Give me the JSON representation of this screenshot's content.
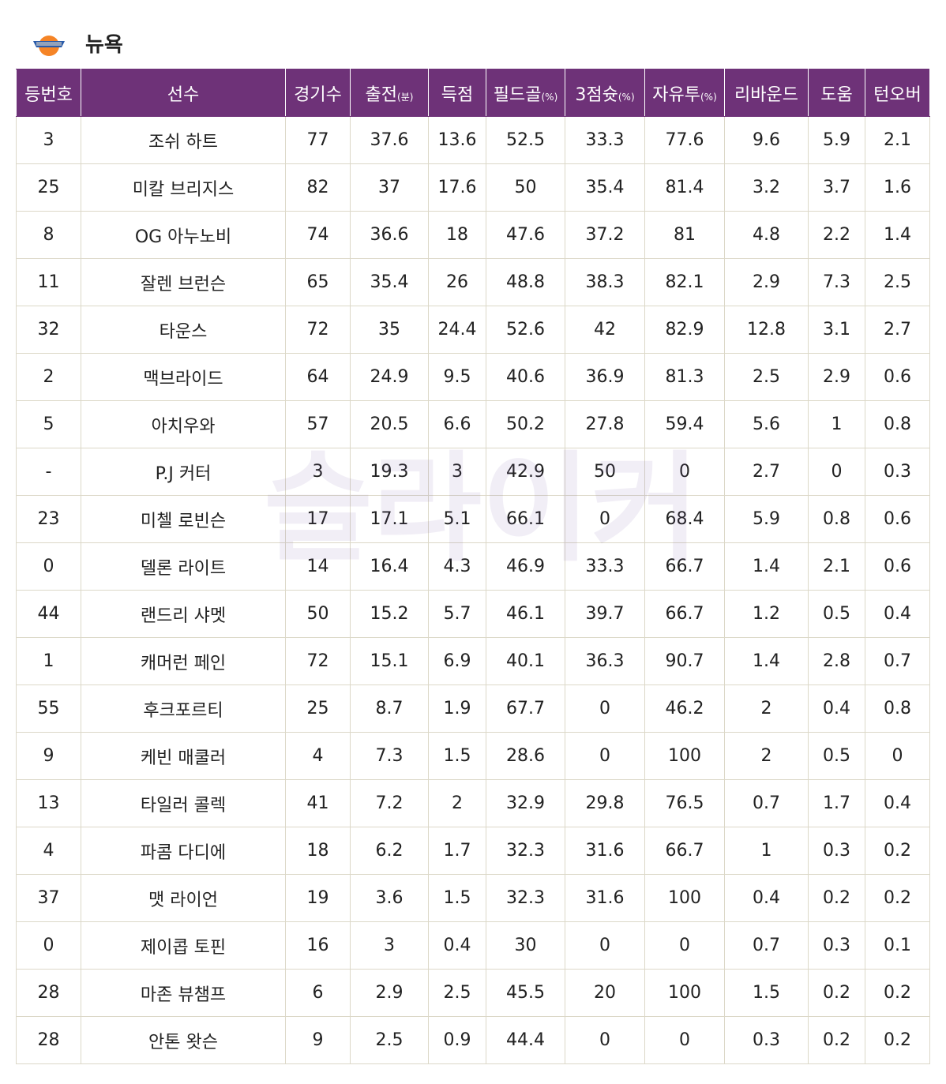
{
  "header": {
    "title": "뉴욕"
  },
  "watermark": "슬라이커",
  "table": {
    "columns": [
      {
        "label": "등번호"
      },
      {
        "label": "선수"
      },
      {
        "label": "경기수"
      },
      {
        "label": "출전",
        "unit": "(분)"
      },
      {
        "label": "득점"
      },
      {
        "label": "필드골",
        "unit": "(%)"
      },
      {
        "label": "3점슛",
        "unit": "(%)"
      },
      {
        "label": "자유투",
        "unit": "(%)"
      },
      {
        "label": "리바운드"
      },
      {
        "label": "도움"
      },
      {
        "label": "턴오버"
      }
    ],
    "rows": [
      [
        "3",
        "조쉬 하트",
        "77",
        "37.6",
        "13.6",
        "52.5",
        "33.3",
        "77.6",
        "9.6",
        "5.9",
        "2.1"
      ],
      [
        "25",
        "미칼 브리지스",
        "82",
        "37",
        "17.6",
        "50",
        "35.4",
        "81.4",
        "3.2",
        "3.7",
        "1.6"
      ],
      [
        "8",
        "OG 아누노비",
        "74",
        "36.6",
        "18",
        "47.6",
        "37.2",
        "81",
        "4.8",
        "2.2",
        "1.4"
      ],
      [
        "11",
        "잘렌 브런슨",
        "65",
        "35.4",
        "26",
        "48.8",
        "38.3",
        "82.1",
        "2.9",
        "7.3",
        "2.5"
      ],
      [
        "32",
        "타운스",
        "72",
        "35",
        "24.4",
        "52.6",
        "42",
        "82.9",
        "12.8",
        "3.1",
        "2.7"
      ],
      [
        "2",
        "맥브라이드",
        "64",
        "24.9",
        "9.5",
        "40.6",
        "36.9",
        "81.3",
        "2.5",
        "2.9",
        "0.6"
      ],
      [
        "5",
        "아치우와",
        "57",
        "20.5",
        "6.6",
        "50.2",
        "27.8",
        "59.4",
        "5.6",
        "1",
        "0.8"
      ],
      [
        "-",
        "P.J 커터",
        "3",
        "19.3",
        "3",
        "42.9",
        "50",
        "0",
        "2.7",
        "0",
        "0.3"
      ],
      [
        "23",
        "미첼 로빈슨",
        "17",
        "17.1",
        "5.1",
        "66.1",
        "0",
        "68.4",
        "5.9",
        "0.8",
        "0.6"
      ],
      [
        "0",
        "델론 라이트",
        "14",
        "16.4",
        "4.3",
        "46.9",
        "33.3",
        "66.7",
        "1.4",
        "2.1",
        "0.6"
      ],
      [
        "44",
        "랜드리 샤멧",
        "50",
        "15.2",
        "5.7",
        "46.1",
        "39.7",
        "66.7",
        "1.2",
        "0.5",
        "0.4"
      ],
      [
        "1",
        "캐머런 페인",
        "72",
        "15.1",
        "6.9",
        "40.1",
        "36.3",
        "90.7",
        "1.4",
        "2.8",
        "0.7"
      ],
      [
        "55",
        "후크포르티",
        "25",
        "8.7",
        "1.9",
        "67.7",
        "0",
        "46.2",
        "2",
        "0.4",
        "0.8"
      ],
      [
        "9",
        "케빈 매쿨러",
        "4",
        "7.3",
        "1.5",
        "28.6",
        "0",
        "100",
        "2",
        "0.5",
        "0"
      ],
      [
        "13",
        "타일러 콜렉",
        "41",
        "7.2",
        "2",
        "32.9",
        "29.8",
        "76.5",
        "0.7",
        "1.7",
        "0.4"
      ],
      [
        "4",
        "파콤 다디에",
        "18",
        "6.2",
        "1.7",
        "32.3",
        "31.6",
        "66.7",
        "1",
        "0.3",
        "0.2"
      ],
      [
        "37",
        "맷 라이언",
        "19",
        "3.6",
        "1.5",
        "32.3",
        "31.6",
        "100",
        "0.4",
        "0.2",
        "0.2"
      ],
      [
        "0",
        "제이콥 토핀",
        "16",
        "3",
        "0.4",
        "30",
        "0",
        "0",
        "0.7",
        "0.3",
        "0.1"
      ],
      [
        "28",
        "마존 뷰챔프",
        "6",
        "2.9",
        "2.5",
        "45.5",
        "20",
        "100",
        "1.5",
        "0.2",
        "0.2"
      ],
      [
        "28",
        "안톤 왓슨",
        "9",
        "2.5",
        "0.9",
        "44.4",
        "0",
        "0",
        "0.3",
        "0.2",
        "0.2"
      ]
    ]
  }
}
